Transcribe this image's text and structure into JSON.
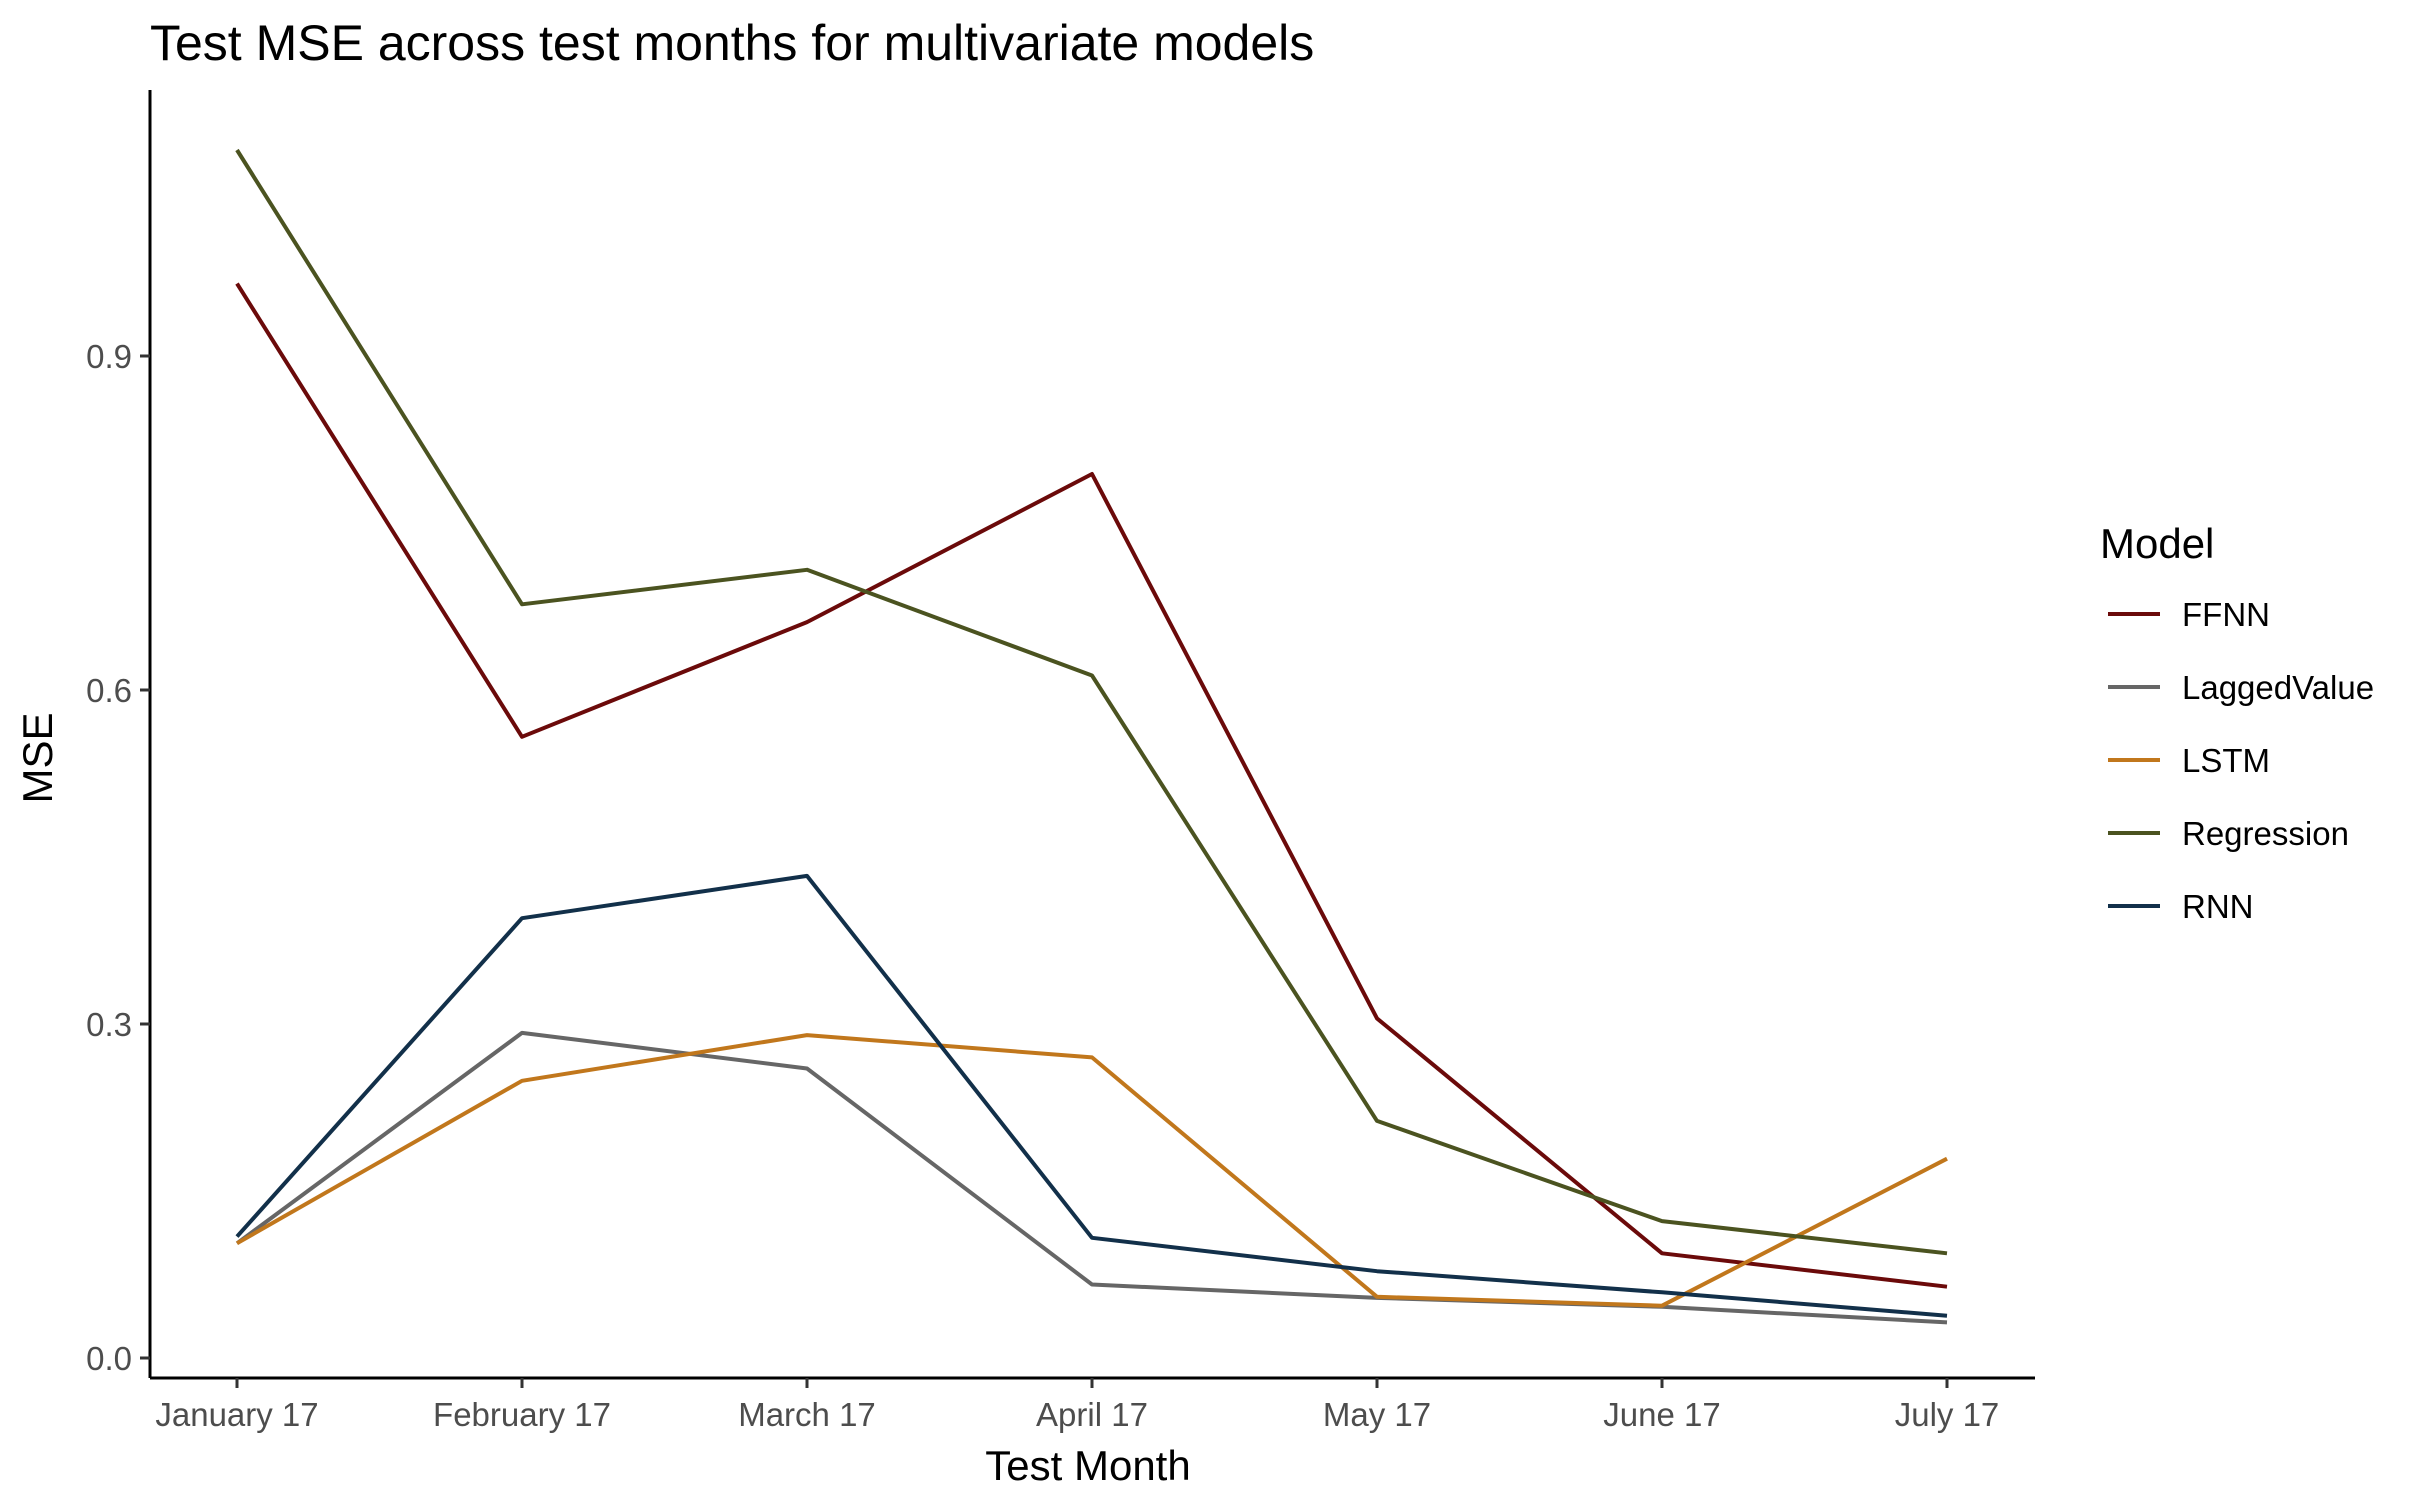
{
  "chart_data": {
    "type": "line",
    "title": "Test MSE across test months for multivariate models",
    "xlabel": "Test Month",
    "ylabel": "MSE",
    "categories": [
      "January 17",
      "February 17",
      "March 17",
      "April 17",
      "May 17",
      "June 17",
      "July 17"
    ],
    "y_ticks": [
      "0.0",
      "0.3",
      "0.6",
      "0.9"
    ],
    "y_tick_values": [
      0.0,
      0.3,
      0.6,
      0.9
    ],
    "ylim": [
      -0.02,
      1.13
    ],
    "grid": false,
    "legend": {
      "title": "Model",
      "position": "right"
    },
    "series": [
      {
        "name": "FFNN",
        "color": "#6b0a0a",
        "values": [
          0.965,
          0.558,
          0.661,
          0.794,
          0.305,
          0.094,
          0.064
        ]
      },
      {
        "name": "LaggedValue",
        "color": "#666666",
        "values": [
          0.103,
          0.292,
          0.26,
          0.066,
          0.054,
          0.046,
          0.032
        ]
      },
      {
        "name": "LSTM",
        "color": "#c1771c",
        "values": [
          0.103,
          0.249,
          0.29,
          0.27,
          0.055,
          0.047,
          0.179
        ]
      },
      {
        "name": "Regression",
        "color": "#4b5320",
        "values": [
          1.085,
          0.677,
          0.708,
          0.613,
          0.213,
          0.123,
          0.094
        ]
      },
      {
        "name": "RNN",
        "color": "#12304a",
        "values": [
          0.109,
          0.395,
          0.433,
          0.108,
          0.078,
          0.059,
          0.038
        ]
      }
    ]
  }
}
